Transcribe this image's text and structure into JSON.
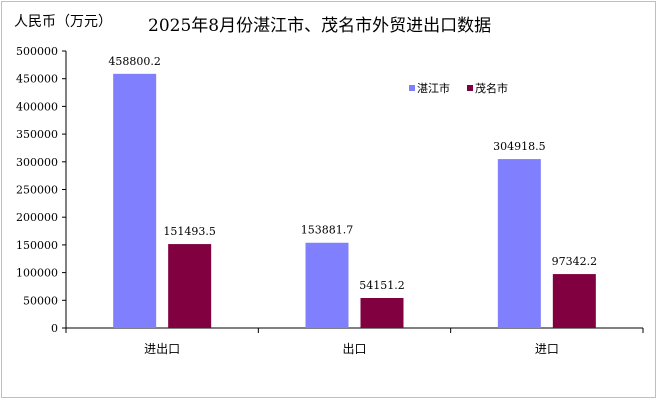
{
  "chart_data": {
    "type": "bar",
    "title": "2025年8月份湛江市、茂名市外贸进出口数据",
    "unit_label": "人民币（万元）",
    "categories": [
      "进出口",
      "出口",
      "进口"
    ],
    "series": [
      {
        "name": "湛江市",
        "color": "#8080ff",
        "values": [
          458800.2,
          153881.7,
          304918.5
        ],
        "labels": [
          "458800.2",
          "153881.7",
          "304918.5"
        ]
      },
      {
        "name": "茂名市",
        "color": "#800040",
        "values": [
          151493.5,
          54151.2,
          97342.2
        ],
        "labels": [
          "151493.5",
          "54151.2",
          "97342.2"
        ]
      }
    ],
    "yticks": [
      "0",
      "50000",
      "100000",
      "150000",
      "200000",
      "250000",
      "300000",
      "350000",
      "400000",
      "450000",
      "500000"
    ],
    "ylim": [
      0,
      500000
    ],
    "legend_position": "top-right",
    "grid": false
  }
}
